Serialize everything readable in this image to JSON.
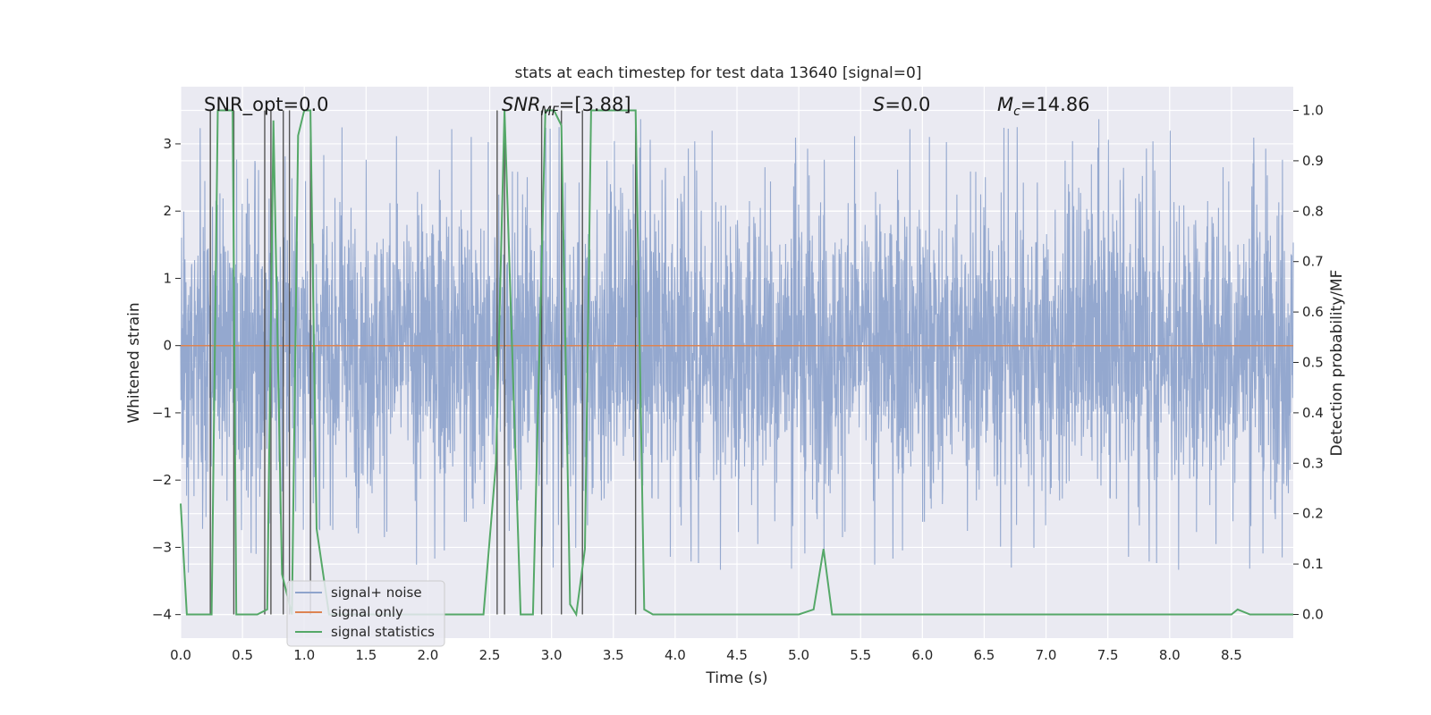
{
  "chart_data": {
    "type": "line",
    "title": "stats at each timestep for test data 13640 [signal=0]",
    "xlabel": "Time (s)",
    "ylabel": "Whitened strain",
    "ylabel_right": "Detection probability/MF",
    "xlim": [
      0.0,
      9.0
    ],
    "ylim": [
      -4.35,
      3.85
    ],
    "ylim_right": [
      -0.047,
      1.047
    ],
    "x_ticks": [
      "0.0",
      "0.5",
      "1.0",
      "1.5",
      "2.0",
      "2.5",
      "3.0",
      "3.5",
      "4.0",
      "4.5",
      "5.0",
      "5.5",
      "6.0",
      "6.5",
      "7.0",
      "7.5",
      "8.0",
      "8.5"
    ],
    "y_ticks": [
      "3",
      "2",
      "1",
      "0",
      "−1",
      "−2",
      "−3",
      "−4"
    ],
    "y_ticks_right": [
      "1.0",
      "0.9",
      "0.8",
      "0.7",
      "0.6",
      "0.5",
      "0.4",
      "0.3",
      "0.2",
      "0.1",
      "0.0"
    ],
    "grid": true,
    "legend_position": "lower-left",
    "annotations": {
      "snr_opt": "SNR_opt=0.0",
      "snr_mf_sym": "SNR",
      "snr_mf_sub": "MF",
      "snr_mf_val": "=[3.88]",
      "s_sym": "S",
      "s_val": "=0.0",
      "mc_sym": "M",
      "mc_sub": "c",
      "mc_val": "=14.86"
    },
    "series": [
      {
        "name": "signal+ noise",
        "color": "#8fa4cc",
        "description": "whitened strain noise, envelope roughly -2.3 to 2.3 with spikes to about ±3.4",
        "axis": "left"
      },
      {
        "name": "signal only",
        "color": "#dd8452",
        "x": [
          0.0,
          9.0
        ],
        "y": [
          0.0,
          0.0
        ],
        "axis": "left"
      },
      {
        "name": "signal statistics",
        "color": "#55a868",
        "axis": "right",
        "x": [
          0.0,
          0.05,
          0.25,
          0.3,
          0.42,
          0.45,
          0.5,
          0.62,
          0.7,
          0.75,
          0.82,
          0.9,
          0.95,
          1.0,
          1.05,
          1.1,
          1.2,
          1.5,
          2.0,
          2.45,
          2.55,
          2.62,
          2.75,
          2.85,
          2.95,
          3.02,
          3.08,
          3.15,
          3.2,
          3.27,
          3.32,
          3.4,
          3.5,
          3.6,
          3.68,
          3.75,
          3.82,
          3.9,
          4.0,
          4.5,
          5.0,
          5.12,
          5.2,
          5.27,
          5.4,
          6.0,
          7.0,
          8.0,
          8.5,
          8.55,
          8.65,
          9.0
        ],
        "y": [
          0.22,
          0.0,
          0.0,
          1.0,
          1.0,
          0.0,
          0.0,
          0.0,
          0.01,
          0.98,
          0.08,
          0.0,
          0.95,
          1.0,
          1.0,
          0.17,
          0.0,
          0.0,
          0.0,
          0.0,
          0.3,
          1.0,
          0.0,
          0.0,
          1.0,
          1.0,
          0.97,
          0.02,
          0.0,
          0.13,
          1.0,
          1.0,
          1.0,
          1.0,
          1.0,
          0.01,
          0.0,
          0.0,
          0.0,
          0.0,
          0.0,
          0.01,
          0.13,
          0.0,
          0.0,
          0.0,
          0.0,
          0.0,
          0.0,
          0.01,
          0.0,
          0.0
        ]
      }
    ],
    "vertical_markers": {
      "x": [
        0.24,
        0.43,
        0.68,
        0.73,
        0.83,
        0.88,
        1.05,
        2.56,
        2.62,
        2.92,
        3.08,
        3.25,
        3.68
      ],
      "color": "#555555"
    }
  }
}
